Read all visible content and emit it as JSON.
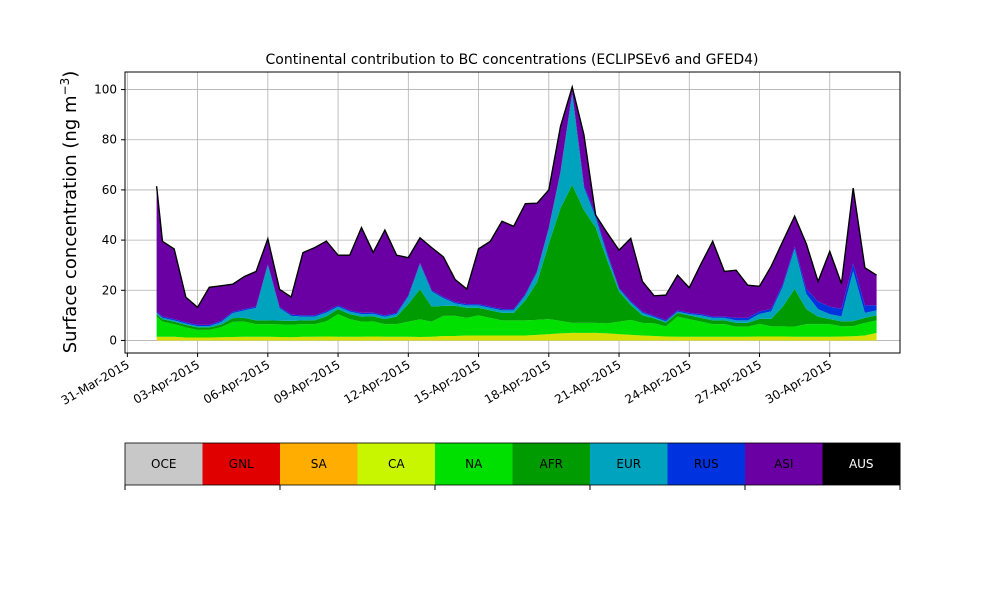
{
  "chart_data": {
    "type": "area",
    "title": "Continental contribution to BC concentrations (ECLIPSEv6 and GFED4)",
    "ylabel": "Surface concentration (ng m",
    "ylabel_sup": "−3",
    "ylabel_tail": ")",
    "xlabel": "",
    "x_unit": "day of April 2015 (0 = 01-Apr-2015 00:00)",
    "xlim": [
      -1.1,
      32.0
    ],
    "ylim": [
      -5,
      107
    ],
    "grid": true,
    "yticks": [
      0,
      20,
      40,
      60,
      80,
      100
    ],
    "xticks": [
      {
        "x": -1,
        "label": "31-Mar-2015"
      },
      {
        "x": 2,
        "label": "03-Apr-2015"
      },
      {
        "x": 5,
        "label": "06-Apr-2015"
      },
      {
        "x": 8,
        "label": "09-Apr-2015"
      },
      {
        "x": 11,
        "label": "12-Apr-2015"
      },
      {
        "x": 14,
        "label": "15-Apr-2015"
      },
      {
        "x": 17,
        "label": "18-Apr-2015"
      },
      {
        "x": 20,
        "label": "21-Apr-2015"
      },
      {
        "x": 23,
        "label": "24-Apr-2015"
      },
      {
        "x": 26,
        "label": "27-Apr-2015"
      },
      {
        "x": 29,
        "label": "30-Apr-2015"
      }
    ],
    "total_line_color": "#000000",
    "x": [
      0.25,
      0.5,
      1,
      1.5,
      2,
      2.5,
      3,
      3.5,
      4,
      4.5,
      5,
      5.5,
      6,
      6.5,
      7,
      7.5,
      8,
      8.5,
      9,
      9.5,
      10,
      10.5,
      11,
      11.5,
      12,
      12.5,
      13,
      13.5,
      14,
      14.5,
      15,
      15.5,
      16,
      16.5,
      17,
      17.5,
      18,
      18.5,
      19,
      19.5,
      20,
      20.5,
      21,
      21.5,
      22,
      22.5,
      23,
      23.5,
      24,
      24.5,
      25,
      25.5,
      26,
      26.5,
      27,
      27.5,
      28,
      28.5,
      29,
      29.5,
      30,
      30.5,
      31
    ],
    "series": [
      {
        "name": "CA",
        "color": "#d7e000",
        "values": [
          1.5,
          1.5,
          1.5,
          1.2,
          1.2,
          1.2,
          1.3,
          1.4,
          1.5,
          1.5,
          1.5,
          1.4,
          1.3,
          1.5,
          1.5,
          1.6,
          1.5,
          1.5,
          1.5,
          1.6,
          1.5,
          1.5,
          1.5,
          1.4,
          1.5,
          1.8,
          1.8,
          2,
          2,
          2,
          2,
          2,
          2,
          2.2,
          2.5,
          2.8,
          3,
          3,
          3,
          2.8,
          2.5,
          2.2,
          2,
          1.8,
          1.6,
          1.5,
          1.5,
          1.5,
          1.5,
          1.5,
          1.5,
          1.5,
          1.6,
          1.6,
          1.6,
          1.5,
          1.5,
          1.5,
          1.5,
          1.6,
          1.7,
          2,
          3
        ]
      },
      {
        "name": "NA",
        "color": "#00e000",
        "values": [
          8,
          6,
          5,
          4,
          3,
          3,
          4,
          6,
          6,
          5,
          5,
          5,
          5,
          5,
          5,
          6,
          9,
          7,
          6,
          6,
          5,
          5,
          6,
          7,
          6,
          8,
          8,
          7,
          8,
          7,
          6,
          6,
          6,
          6,
          6,
          5,
          4,
          4,
          4,
          4,
          5,
          6,
          5,
          5,
          4,
          8,
          7,
          6,
          5,
          5,
          4,
          4,
          5,
          4,
          4,
          4,
          5,
          5,
          5,
          4,
          4,
          5,
          5
        ]
      },
      {
        "name": "AFR",
        "color": "#009b00",
        "values": [
          1,
          1,
          1,
          1,
          1,
          1,
          1,
          1.5,
          1.5,
          1.5,
          1.5,
          1.5,
          1.5,
          1.5,
          1.5,
          2,
          2,
          2,
          2,
          2,
          2,
          3,
          7,
          12,
          6,
          4,
          4,
          4,
          3,
          3,
          3,
          3,
          8,
          15,
          30,
          45,
          55,
          45,
          38,
          25,
          12,
          6,
          3,
          2,
          1.5,
          1.5,
          1.5,
          1.5,
          1.5,
          1.5,
          1.5,
          1.5,
          2,
          3,
          8,
          15,
          6,
          3,
          2,
          2,
          2,
          2,
          2
        ]
      },
      {
        "name": "EUR",
        "color": "#00a3bd",
        "values": [
          0.5,
          0.5,
          0.5,
          0.5,
          0.5,
          0.5,
          1,
          2,
          3,
          5,
          22,
          5,
          2,
          1.5,
          1.5,
          1.5,
          1,
          1,
          1,
          1,
          1,
          1,
          3,
          10,
          6,
          3,
          1,
          1,
          1,
          1,
          1,
          1,
          2,
          4,
          6,
          14,
          36,
          9,
          4,
          2,
          1,
          1,
          1,
          0.5,
          0.5,
          0.5,
          0.5,
          1,
          1,
          1,
          1,
          1,
          2,
          3,
          8,
          16,
          6,
          3,
          2,
          2,
          20,
          2,
          2
        ]
      },
      {
        "name": "RUS",
        "color": "#0033e0",
        "values": [
          0.5,
          0.5,
          0.5,
          0.5,
          0.5,
          0.5,
          0.5,
          0.5,
          0.5,
          0.5,
          0.5,
          0.5,
          0.5,
          0.5,
          0.5,
          0.5,
          0.5,
          0.5,
          0.5,
          0.5,
          0.5,
          0.5,
          0.5,
          0.5,
          0.5,
          0.5,
          0.5,
          0.5,
          0.5,
          0.5,
          0.5,
          0.5,
          0.5,
          0.5,
          0.5,
          0.5,
          1,
          1,
          1,
          1,
          0.5,
          0.5,
          0.5,
          0.5,
          0.5,
          0.5,
          0.5,
          0.5,
          0.5,
          0.5,
          1,
          1,
          1,
          1,
          1,
          1,
          2,
          3,
          3,
          3,
          3,
          3,
          2
        ]
      },
      {
        "name": "ASI",
        "color": "#6a00a3",
        "values": [
          50,
          30,
          28,
          10,
          7,
          15,
          14,
          11,
          13,
          14,
          10,
          7,
          7,
          25,
          27,
          28,
          20,
          22,
          34,
          24,
          34,
          23,
          15,
          10,
          17,
          16,
          9,
          6,
          22,
          26,
          35,
          33,
          36,
          27,
          15,
          18,
          2,
          20,
          0,
          8,
          15,
          25,
          12,
          8,
          10,
          14,
          10,
          20,
          30,
          18,
          19,
          13,
          10,
          17,
          17,
          12,
          18,
          8,
          22,
          10,
          30,
          15,
          12
        ]
      }
    ]
  },
  "legend": {
    "colorbar": [
      {
        "label": "OCE",
        "color": "#c8c8c8",
        "text_color": "#000000"
      },
      {
        "label": "GNL",
        "color": "#e00000",
        "text_color": "#000000"
      },
      {
        "label": "SA",
        "color": "#ffae00",
        "text_color": "#000000"
      },
      {
        "label": "CA",
        "color": "#c8f500",
        "text_color": "#000000"
      },
      {
        "label": "NA",
        "color": "#00e000",
        "text_color": "#000000"
      },
      {
        "label": "AFR",
        "color": "#009b00",
        "text_color": "#000000"
      },
      {
        "label": "EUR",
        "color": "#00a3bd",
        "text_color": "#000000"
      },
      {
        "label": "RUS",
        "color": "#0033e0",
        "text_color": "#000000"
      },
      {
        "label": "ASI",
        "color": "#6a00a3",
        "text_color": "#000000"
      },
      {
        "label": "AUS",
        "color": "#000000",
        "text_color": "#ffffff"
      }
    ]
  }
}
